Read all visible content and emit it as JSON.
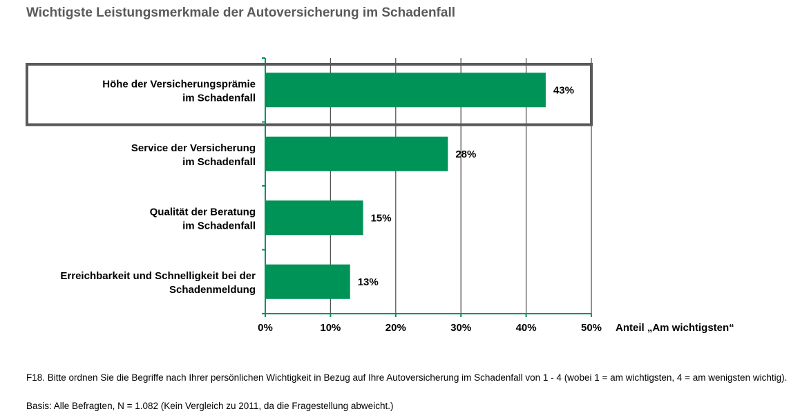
{
  "title": "Wichtigste Leistungsmerkmale der Autoversicherung im Schadenfall",
  "chart_data": {
    "type": "bar",
    "orientation": "horizontal",
    "categories": [
      [
        "Höhe der Versicherungsprämie",
        "im Schadenfall"
      ],
      [
        "Service der Versicherung",
        "im Schadenfall"
      ],
      [
        "Qualität der Beratung",
        "im Schadenfall"
      ],
      [
        "Erreichbarkeit und Schnelligkeit bei der",
        "Schadenmeldung"
      ]
    ],
    "values": [
      43,
      28,
      15,
      13
    ],
    "value_labels": [
      "43%",
      "28%",
      "15%",
      "13%"
    ],
    "xlabel": "Anteil „Am wichtigsten“",
    "xlim": [
      0,
      50
    ],
    "xticks": [
      "0%",
      "10%",
      "20%",
      "30%",
      "40%",
      "50%"
    ],
    "grid": true,
    "bar_color": "#009357",
    "highlighted_category_index": 0,
    "highlight_color": "#595959"
  },
  "footnote": {
    "question": "F18. Bitte ordnen Sie die Begriffe nach Ihrer persönlichen Wichtigkeit in Bezug auf Ihre Autoversicherung im Schadenfall von 1 - 4 (wobei 1 = am wichtigsten, 4 = am wenigsten wichtig).",
    "basis": "Basis: Alle Befragten, N = 1.082 (Kein Vergleich zu 2011, da die Fragestellung abweicht.)"
  }
}
